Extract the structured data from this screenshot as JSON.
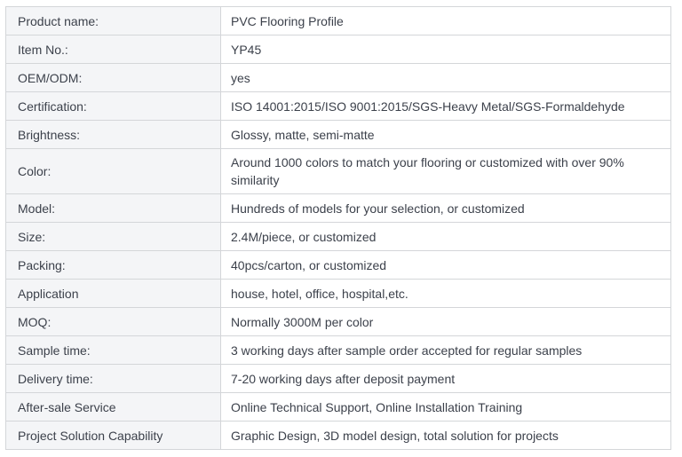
{
  "page": {
    "background": "#ffffff"
  },
  "table": {
    "name": "product-specification-table",
    "colors": {
      "label_bg": "#f4f5f7",
      "value_bg": "#ffffff",
      "border": "#d4d6d9",
      "text": "#3c414b"
    },
    "rows": [
      {
        "label": "Product name:",
        "value": "PVC Flooring Profile"
      },
      {
        "label": "Item No.:",
        "value": "YP45"
      },
      {
        "label": "OEM/ODM:",
        "value": "yes"
      },
      {
        "label": "Certification:",
        "value": "ISO 14001:2015/ISO 9001:2015/SGS-Heavy Metal/SGS-Formaldehyde"
      },
      {
        "label": "Brightness:",
        "value": "Glossy, matte, semi-matte"
      },
      {
        "label": "Color:",
        "value": "Around 1000 colors to match your flooring or customized with over 90% similarity"
      },
      {
        "label": "Model:",
        "value": "Hundreds of models for your selection, or customized"
      },
      {
        "label": "Size:",
        "value": "2.4M/piece, or customized"
      },
      {
        "label": "Packing:",
        "value": "40pcs/carton, or customized"
      },
      {
        "label": "Application",
        "value": "house, hotel, office, hospital,etc."
      },
      {
        "label": "MOQ:",
        "value": "Normally 3000M per color"
      },
      {
        "label": "Sample time:",
        "value": "3 working days after sample order accepted for regular samples"
      },
      {
        "label": "Delivery time:",
        "value": "7-20 working days after deposit payment"
      },
      {
        "label": "After-sale Service",
        "value": "Online Technical Support, Online Installation Training"
      },
      {
        "label": "Project Solution Capability",
        "value": "Graphic Design, 3D model design, total solution for projects"
      }
    ]
  }
}
